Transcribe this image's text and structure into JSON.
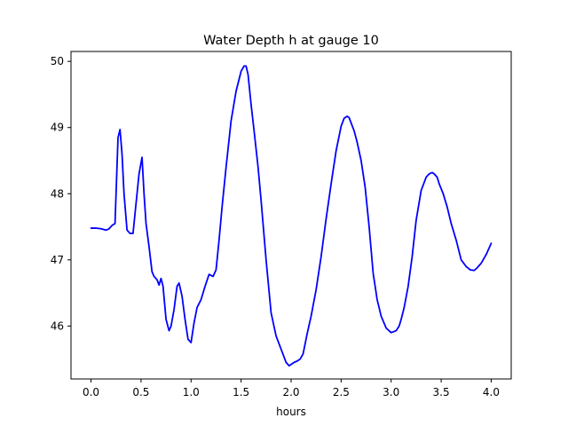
{
  "chart_data": {
    "type": "line",
    "title": "Water Depth h at gauge 10",
    "xlabel": "hours",
    "ylabel": "",
    "xlim": [
      -0.2,
      4.2
    ],
    "ylim": [
      45.2,
      50.15
    ],
    "xticks": [
      0.0,
      0.5,
      1.0,
      1.5,
      2.0,
      2.5,
      3.0,
      3.5,
      4.0
    ],
    "xtick_labels": [
      "0.0",
      "0.5",
      "1.0",
      "1.5",
      "2.0",
      "2.5",
      "3.0",
      "3.5",
      "4.0"
    ],
    "yticks": [
      46,
      47,
      48,
      49,
      50
    ],
    "ytick_labels": [
      "46",
      "47",
      "48",
      "49",
      "50"
    ],
    "grid": false,
    "color": "#0000ff",
    "series": [
      {
        "x": [
          0.0,
          0.05,
          0.1,
          0.15,
          0.18,
          0.21,
          0.24,
          0.27,
          0.29,
          0.31,
          0.33,
          0.36,
          0.39,
          0.42,
          0.45,
          0.48,
          0.51,
          0.53,
          0.55,
          0.58,
          0.61,
          0.63,
          0.66,
          0.68,
          0.7,
          0.72,
          0.75,
          0.78,
          0.8,
          0.83,
          0.86,
          0.88,
          0.91,
          0.94,
          0.97,
          1.0,
          1.03,
          1.06,
          1.1,
          1.14,
          1.18,
          1.22,
          1.25,
          1.28,
          1.31,
          1.35,
          1.4,
          1.45,
          1.5,
          1.53,
          1.55,
          1.57,
          1.6,
          1.63,
          1.67,
          1.7,
          1.75,
          1.8,
          1.85,
          1.9,
          1.95,
          1.98,
          2.0,
          2.03,
          2.06,
          2.09,
          2.12,
          2.16,
          2.2,
          2.25,
          2.3,
          2.35,
          2.4,
          2.45,
          2.5,
          2.53,
          2.56,
          2.58,
          2.6,
          2.63,
          2.66,
          2.7,
          2.74,
          2.78,
          2.82,
          2.86,
          2.9,
          2.95,
          3.0,
          3.05,
          3.08,
          3.1,
          3.13,
          3.17,
          3.21,
          3.25,
          3.3,
          3.35,
          3.38,
          3.41,
          3.43,
          3.46,
          3.48,
          3.52,
          3.56,
          3.6,
          3.65,
          3.7,
          3.75,
          3.79,
          3.83,
          3.86,
          3.9,
          3.95,
          4.0
        ],
        "y": [
          47.48,
          47.48,
          47.47,
          47.45,
          47.47,
          47.52,
          47.55,
          48.85,
          48.97,
          48.6,
          48.0,
          47.45,
          47.4,
          47.4,
          47.85,
          48.3,
          48.55,
          48.0,
          47.55,
          47.2,
          46.82,
          46.75,
          46.7,
          46.62,
          46.72,
          46.6,
          46.1,
          45.93,
          46.0,
          46.25,
          46.6,
          46.65,
          46.45,
          46.1,
          45.8,
          45.75,
          46.05,
          46.28,
          46.4,
          46.6,
          46.78,
          46.75,
          46.85,
          47.3,
          47.8,
          48.4,
          49.1,
          49.55,
          49.85,
          49.93,
          49.93,
          49.8,
          49.35,
          48.95,
          48.4,
          47.9,
          47.0,
          46.2,
          45.85,
          45.65,
          45.45,
          45.4,
          45.42,
          45.45,
          45.47,
          45.5,
          45.58,
          45.88,
          46.15,
          46.55,
          47.05,
          47.62,
          48.15,
          48.65,
          49.02,
          49.14,
          49.17,
          49.15,
          49.07,
          48.95,
          48.78,
          48.5,
          48.1,
          47.5,
          46.8,
          46.4,
          46.15,
          45.97,
          45.9,
          45.93,
          46.0,
          46.1,
          46.28,
          46.6,
          47.05,
          47.6,
          48.05,
          48.25,
          48.3,
          48.32,
          48.3,
          48.25,
          48.15,
          48.0,
          47.8,
          47.55,
          47.3,
          47.0,
          46.9,
          46.85,
          46.84,
          46.88,
          46.95,
          47.08,
          47.25
        ]
      }
    ]
  }
}
